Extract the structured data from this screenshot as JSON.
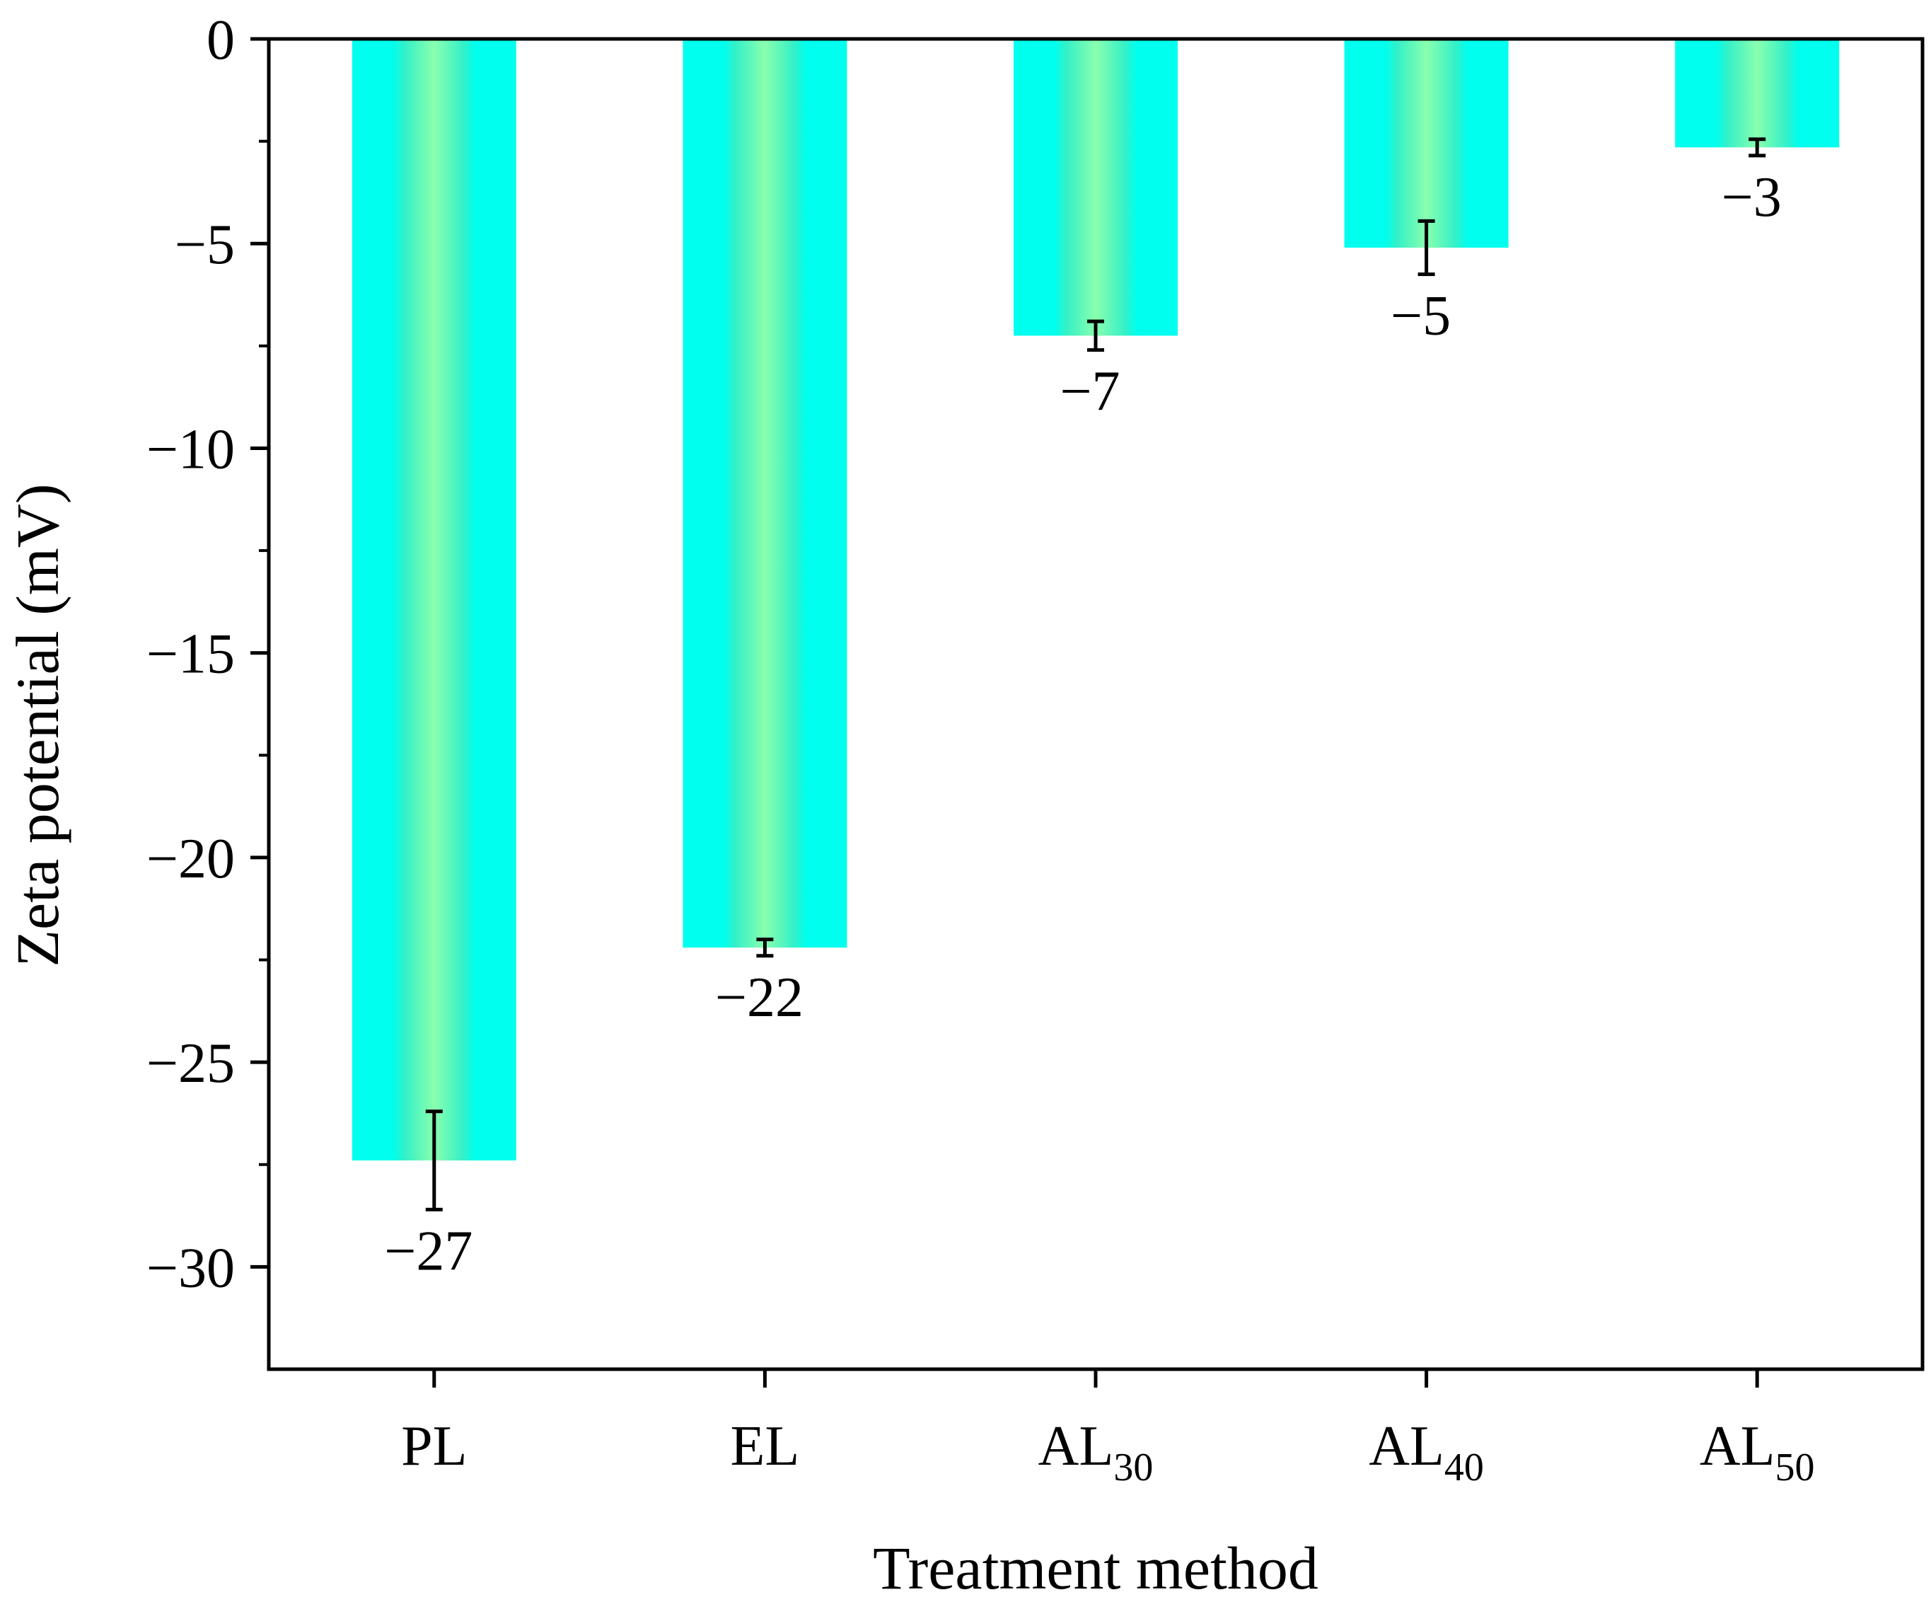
{
  "chart_data": {
    "type": "bar",
    "title": "",
    "xlabel": "Treatment method",
    "ylabel": "Zeta potential (mV)",
    "ylim": [
      -32.5,
      0
    ],
    "yticks": [
      0,
      -5,
      -10,
      -15,
      -20,
      -25,
      -30
    ],
    "ytick_labels": [
      "0",
      "−5",
      "−10",
      "−15",
      "−20",
      "−25",
      "−30"
    ],
    "categories": [
      {
        "main": "PL",
        "sub": ""
      },
      {
        "main": "EL",
        "sub": ""
      },
      {
        "main": "AL",
        "sub": "30"
      },
      {
        "main": "AL",
        "sub": "40"
      },
      {
        "main": "AL",
        "sub": "50"
      }
    ],
    "values": [
      -27.4,
      -22.2,
      -7.25,
      -5.1,
      -2.65
    ],
    "errors": [
      1.2,
      0.2,
      0.35,
      0.65,
      0.2
    ],
    "data_labels": [
      "−27",
      "−22",
      "−7",
      "−5",
      "−3"
    ],
    "grid": false,
    "colors": {
      "bar_edge": "#00ffee",
      "bar_center": "#8affae",
      "bar_mid": "#33f0c8",
      "axis": "#000000",
      "error_bar": "#000000"
    }
  }
}
